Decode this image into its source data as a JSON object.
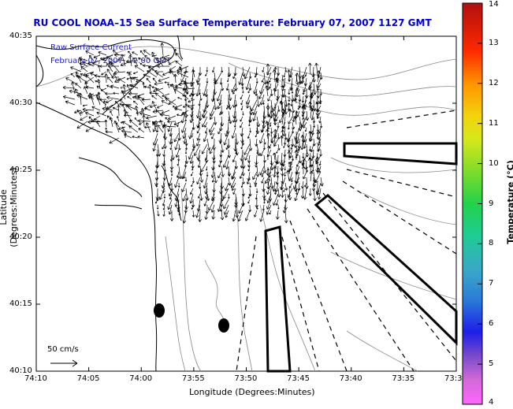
{
  "title": "RU COOL  NOAA–15  Sea Surface Temperature:  February 07, 2007 1127 GMT",
  "legend": {
    "line1": "Raw Surface Current",
    "line2": "February 07, 2007, 12:00 GMT"
  },
  "axes": {
    "xlabel": "Longitude (Degrees:Minutes)",
    "ylabel": "Latitude (Degrees:Minutes)",
    "xticks": [
      "74:10",
      "74:05",
      "74:00",
      "73:55",
      "73:50",
      "73:45",
      "73:40",
      "73:35",
      "73:3"
    ],
    "yticks": [
      "40:35",
      "40:30",
      "40:25",
      "40:20",
      "40:15",
      "40:10"
    ]
  },
  "colorbar": {
    "label": "Temperature (°C)",
    "ticks": [
      "14",
      "13",
      "12",
      "11",
      "10",
      "9",
      "8",
      "7",
      "6",
      "5",
      "4"
    ],
    "min": 4,
    "max": 14
  },
  "scale": {
    "label": "50 cm/s"
  },
  "colors": {
    "title": "#0000cc",
    "legend_text": "#1b1bd0"
  }
}
